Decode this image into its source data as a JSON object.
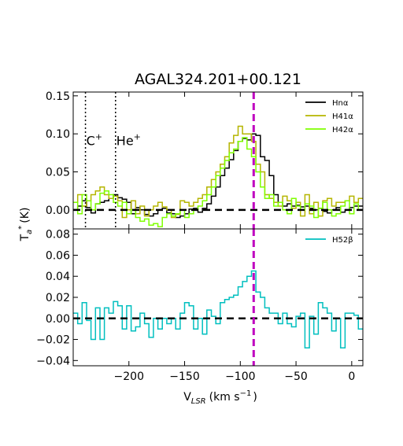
{
  "title": "AGAL324.201+00.121",
  "ylabel": "T",
  "ylabel_sub": "a",
  "ylabel_sup": "*",
  "ylabel_unit": "(K)",
  "xlabel": "V",
  "xlabel_sub": "LSR",
  "xlabel_unit": "(km s",
  "xlabel_sup": "−1",
  "xlabel_close": ")",
  "colors": {
    "Hn_alpha": "#000000",
    "H41_alpha": "#b5b500",
    "H42_alpha": "#7fff00",
    "H52_beta": "#00bfbf",
    "vline": "#bf00bf",
    "baseline": "#000000"
  },
  "chart_data": [
    {
      "type": "line",
      "step": true,
      "xlim": [
        -250,
        10
      ],
      "ylim": [
        -0.025,
        0.155
      ],
      "yticks": [
        0.0,
        0.05,
        0.1,
        0.15
      ],
      "ytick_labels": [
        "0.00",
        "0.05",
        "0.10",
        "0.15"
      ],
      "series": [
        {
          "name": "Hnα",
          "color": "#000000",
          "x": [
            -248,
            -244,
            -240,
            -236,
            -232,
            -228,
            -224,
            -220,
            -216,
            -212,
            -208,
            -204,
            -200,
            -196,
            -192,
            -188,
            -184,
            -180,
            -176,
            -172,
            -168,
            -164,
            -160,
            -156,
            -152,
            -148,
            -144,
            -140,
            -136,
            -132,
            -128,
            -124,
            -120,
            -116,
            -112,
            -108,
            -104,
            -100,
            -96,
            -92,
            -88,
            -84,
            -80,
            -76,
            -72,
            -68,
            -64,
            -60,
            -56,
            -52,
            -48,
            -44,
            -40,
            -36,
            -32,
            -28,
            -24,
            -20,
            -16,
            -12,
            -8,
            -4,
            0,
            4,
            8
          ],
          "y": [
            0.0,
            0.005,
            0.012,
            0.003,
            -0.004,
            0.008,
            0.01,
            0.012,
            0.015,
            0.02,
            0.016,
            0.014,
            0.01,
            -0.005,
            0.003,
            0.0,
            -0.006,
            -0.008,
            -0.005,
            0.0,
            0.002,
            -0.004,
            -0.005,
            -0.01,
            -0.008,
            -0.005,
            0.001,
            0.002,
            -0.003,
            0.002,
            0.008,
            0.018,
            0.03,
            0.045,
            0.055,
            0.066,
            0.078,
            0.09,
            0.094,
            0.092,
            0.1,
            0.098,
            0.07,
            0.065,
            0.045,
            0.02,
            0.01,
            0.005,
            0.008,
            0.005,
            0.006,
            0.004,
            0.005,
            0.002,
            0.0,
            0.002,
            -0.002,
            -0.004,
            0.0,
            0.003,
            -0.003,
            0.0,
            0.003,
            0.005,
            0.005
          ]
        },
        {
          "name": "H41α",
          "color": "#b5b500",
          "x": [
            -248,
            -244,
            -240,
            -236,
            -232,
            -228,
            -224,
            -220,
            -216,
            -212,
            -208,
            -204,
            -200,
            -196,
            -192,
            -188,
            -184,
            -180,
            -176,
            -172,
            -168,
            -164,
            -160,
            -156,
            -152,
            -148,
            -144,
            -140,
            -136,
            -132,
            -128,
            -124,
            -120,
            -116,
            -112,
            -108,
            -104,
            -100,
            -96,
            -92,
            -88,
            -84,
            -80,
            -76,
            -72,
            -68,
            -64,
            -60,
            -56,
            -52,
            -48,
            -44,
            -40,
            -36,
            -32,
            -28,
            -24,
            -20,
            -16,
            -12,
            -8,
            -4,
            0,
            4,
            8
          ],
          "y": [
            0.01,
            0.02,
            0.005,
            0.012,
            0.02,
            0.025,
            0.03,
            0.02,
            0.015,
            0.018,
            0.012,
            -0.01,
            0.0,
            0.012,
            -0.005,
            0.005,
            -0.008,
            0.0,
            0.005,
            0.01,
            0.004,
            0.0,
            -0.01,
            -0.006,
            0.012,
            0.01,
            0.005,
            0.01,
            0.015,
            0.02,
            0.03,
            0.04,
            0.05,
            0.06,
            0.07,
            0.088,
            0.098,
            0.11,
            0.1,
            0.1,
            0.09,
            0.06,
            0.05,
            0.02,
            0.015,
            0.01,
            0.005,
            0.018,
            0.012,
            0.002,
            0.01,
            -0.008,
            0.02,
            -0.005,
            0.01,
            -0.008,
            0.012,
            0.015,
            0.005,
            0.01,
            0.01,
            0.012,
            0.018,
            0.01,
            0.015
          ]
        },
        {
          "name": "H42α",
          "color": "#7fff00",
          "x": [
            -248,
            -244,
            -240,
            -236,
            -232,
            -228,
            -224,
            -220,
            -216,
            -212,
            -208,
            -204,
            -200,
            -196,
            -192,
            -188,
            -184,
            -180,
            -176,
            -172,
            -168,
            -164,
            -160,
            -156,
            -152,
            -148,
            -144,
            -140,
            -136,
            -132,
            -128,
            -124,
            -120,
            -116,
            -112,
            -108,
            -104,
            -100,
            -96,
            -92,
            -88,
            -84,
            -80,
            -76,
            -72,
            -68,
            -64,
            -60,
            -56,
            -52,
            -48,
            -44,
            -40,
            -36,
            -32,
            -28,
            -24,
            -20,
            -16,
            -12,
            -8,
            -4,
            0,
            4,
            8
          ],
          "y": [
            0.01,
            -0.005,
            0.02,
            0.012,
            0.0,
            0.008,
            0.022,
            0.025,
            0.02,
            0.01,
            0.005,
            0.01,
            -0.005,
            0.0,
            -0.01,
            -0.015,
            -0.012,
            -0.02,
            -0.018,
            -0.022,
            -0.01,
            -0.005,
            -0.008,
            -0.005,
            0.0,
            -0.01,
            -0.005,
            0.0,
            0.005,
            0.012,
            0.02,
            0.03,
            0.045,
            0.055,
            0.065,
            0.075,
            0.08,
            0.09,
            0.095,
            0.08,
            0.07,
            0.05,
            0.03,
            0.015,
            0.02,
            0.005,
            0.01,
            0.0,
            -0.005,
            0.015,
            0.005,
            0.0,
            0.008,
            0.005,
            -0.01,
            0.002,
            0.01,
            0.0,
            -0.008,
            -0.005,
            0.005,
            0.012,
            -0.005,
            0.008,
            0.0
          ]
        }
      ],
      "hline": 0,
      "vline": -88,
      "dotted_vlines": [
        -239,
        -212
      ],
      "annotations": [
        {
          "text": "C",
          "sup": "+",
          "x": -239,
          "y": 0.085
        },
        {
          "text": "He",
          "sup": "+",
          "x": -212,
          "y": 0.085
        }
      ],
      "legend": "top-right"
    },
    {
      "type": "line",
      "step": true,
      "xlim": [
        -250,
        10
      ],
      "ylim": [
        -0.045,
        0.085
      ],
      "yticks": [
        -0.04,
        -0.02,
        0.0,
        0.02,
        0.04,
        0.06,
        0.08
      ],
      "ytick_labels": [
        "−0.04",
        "−0.02",
        "0.00",
        "0.02",
        "0.04",
        "0.06",
        "0.08"
      ],
      "xticks": [
        -200,
        -150,
        -100,
        -50,
        0
      ],
      "xtick_labels": [
        "−200",
        "−150",
        "−100",
        "−50",
        "0"
      ],
      "series": [
        {
          "name": "H52β",
          "color": "#00bfbf",
          "x": [
            -248,
            -244,
            -240,
            -236,
            -232,
            -228,
            -224,
            -220,
            -216,
            -212,
            -208,
            -204,
            -200,
            -196,
            -192,
            -188,
            -184,
            -180,
            -176,
            -172,
            -168,
            -164,
            -160,
            -156,
            -152,
            -148,
            -144,
            -140,
            -136,
            -132,
            -128,
            -124,
            -120,
            -116,
            -112,
            -108,
            -104,
            -100,
            -96,
            -92,
            -88,
            -84,
            -80,
            -76,
            -72,
            -68,
            -64,
            -60,
            -56,
            -52,
            -48,
            -44,
            -40,
            -36,
            -32,
            -28,
            -24,
            -20,
            -16,
            -12,
            -8,
            -4,
            0,
            4,
            8
          ],
          "y": [
            0.005,
            -0.005,
            0.015,
            -0.002,
            -0.02,
            0.01,
            -0.02,
            0.01,
            0.005,
            0.016,
            0.012,
            -0.01,
            0.012,
            -0.012,
            -0.008,
            0.005,
            -0.005,
            -0.018,
            0.0,
            -0.01,
            0.0,
            -0.005,
            0.0,
            -0.01,
            0.005,
            0.015,
            0.012,
            -0.01,
            0.0,
            -0.015,
            0.008,
            0.002,
            -0.005,
            0.015,
            0.018,
            0.02,
            0.022,
            0.03,
            0.035,
            0.04,
            0.045,
            0.025,
            0.02,
            0.01,
            0.005,
            0.005,
            -0.005,
            0.005,
            -0.005,
            -0.008,
            0.002,
            0.005,
            -0.028,
            0.002,
            -0.015,
            0.015,
            0.01,
            0.005,
            -0.012,
            0.0,
            -0.028,
            0.005,
            0.005,
            0.003,
            -0.01
          ]
        }
      ],
      "hline": 0,
      "vline": -88,
      "legend": "top-right"
    }
  ]
}
